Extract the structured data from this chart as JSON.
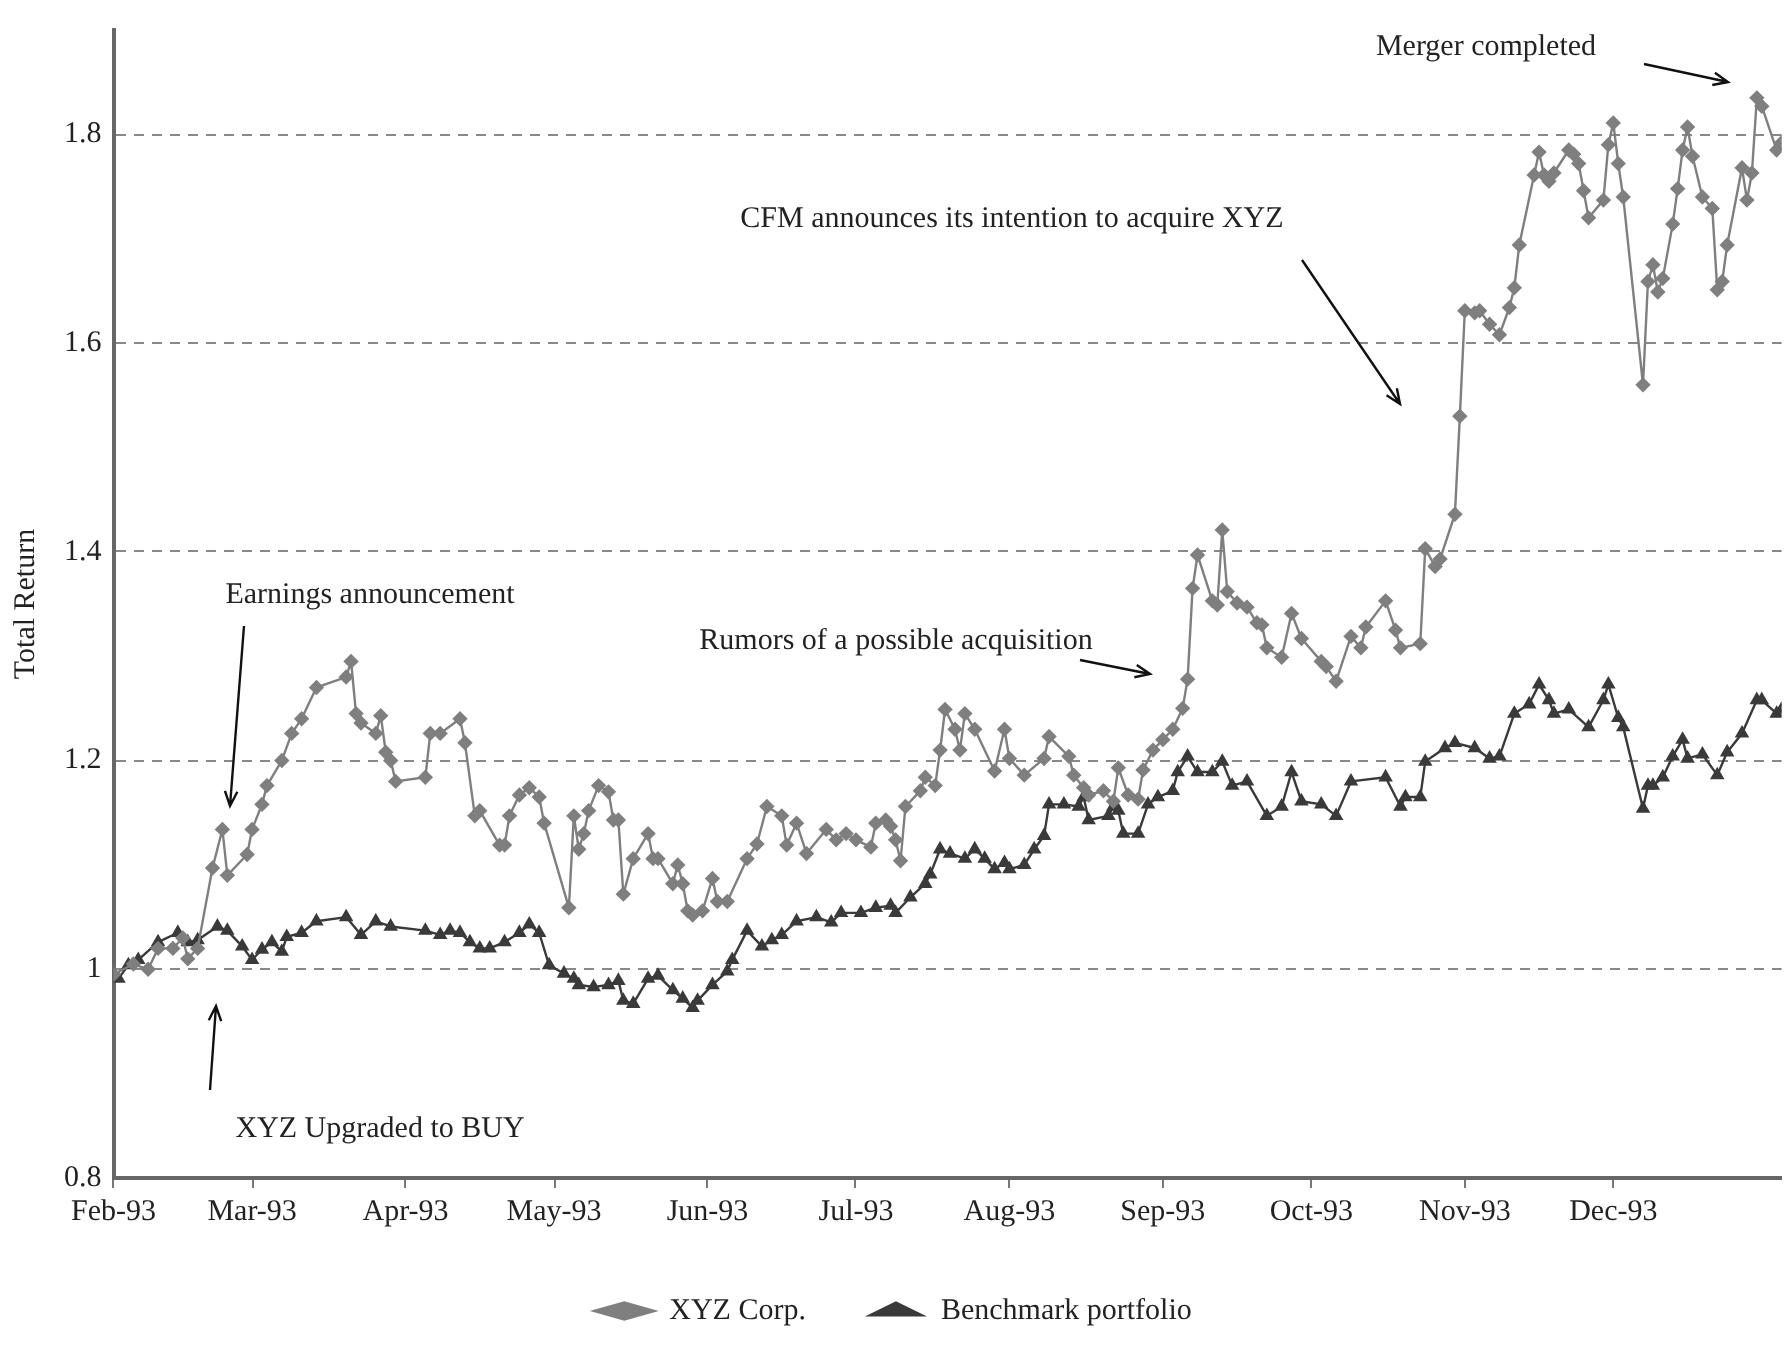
{
  "chart_data": {
    "type": "line",
    "ylabel": "Total Return",
    "ylim": [
      0.8,
      1.9
    ],
    "yticks": [
      0.8,
      1,
      1.2,
      1.4,
      1.6,
      1.8
    ],
    "xlim": [
      "1993-02-01",
      "1994-01-04"
    ],
    "xticks": [
      {
        "value": "1993-02-01",
        "label": "Feb-93"
      },
      {
        "value": "1993-03-01",
        "label": "Mar-93"
      },
      {
        "value": "1993-04-01",
        "label": "Apr-93"
      },
      {
        "value": "1993-05-01",
        "label": "May-93"
      },
      {
        "value": "1993-06-01",
        "label": "Jun-93"
      },
      {
        "value": "1993-07-01",
        "label": "Jul-93"
      },
      {
        "value": "1993-08-01",
        "label": "Aug-93"
      },
      {
        "value": "1993-09-01",
        "label": "Sep-93"
      },
      {
        "value": "1993-10-01",
        "label": "Oct-93"
      },
      {
        "value": "1993-11-01",
        "label": "Nov-93"
      },
      {
        "value": "1993-12-01",
        "label": "Dec-93"
      }
    ],
    "grid": "y",
    "legend": "bottom",
    "line_style": "solid",
    "series": [
      {
        "name": "XYZ Corp.",
        "color": "#7f7f7f",
        "marker": "diamond",
        "x": [
          "1993-02-01",
          "1993-02-05",
          "1993-02-08",
          "1993-02-10",
          "1993-02-13",
          "1993-02-15",
          "1993-02-16",
          "1993-02-18",
          "1993-02-21",
          "1993-02-23",
          "1993-02-24",
          "1993-02-28",
          "1993-03-01",
          "1993-03-03",
          "1993-03-04",
          "1993-03-07",
          "1993-03-09",
          "1993-03-11",
          "1993-03-14",
          "1993-03-20",
          "1993-03-21",
          "1993-03-22",
          "1993-03-23",
          "1993-03-26",
          "1993-03-27",
          "1993-03-28",
          "1993-03-29",
          "1993-03-30",
          "1993-04-05",
          "1993-04-06",
          "1993-04-08",
          "1993-04-12",
          "1993-04-13",
          "1993-04-15",
          "1993-04-16",
          "1993-04-20",
          "1993-04-21",
          "1993-04-22",
          "1993-04-24",
          "1993-04-26",
          "1993-04-28",
          "1993-04-29",
          "1993-05-04",
          "1993-05-05",
          "1993-05-06",
          "1993-05-07",
          "1993-05-08",
          "1993-05-10",
          "1993-05-12",
          "1993-05-13",
          "1993-05-14",
          "1993-05-15",
          "1993-05-17",
          "1993-05-20",
          "1993-05-21",
          "1993-05-22",
          "1993-05-25",
          "1993-05-26",
          "1993-05-27",
          "1993-05-28",
          "1993-05-29",
          "1993-05-31",
          "1993-06-02",
          "1993-06-03",
          "1993-06-05",
          "1993-06-09",
          "1993-06-11",
          "1993-06-13",
          "1993-06-16",
          "1993-06-17",
          "1993-06-19",
          "1993-06-21",
          "1993-06-25",
          "1993-06-27",
          "1993-06-29",
          "1993-07-01",
          "1993-07-04",
          "1993-07-05",
          "1993-07-07",
          "1993-07-08",
          "1993-07-09",
          "1993-07-10",
          "1993-07-11",
          "1993-07-14",
          "1993-07-15",
          "1993-07-17",
          "1993-07-18",
          "1993-07-19",
          "1993-07-21",
          "1993-07-22",
          "1993-07-23",
          "1993-07-25",
          "1993-07-29",
          "1993-07-31",
          "1993-08-01",
          "1993-08-04",
          "1993-08-08",
          "1993-08-09",
          "1993-08-13",
          "1993-08-14",
          "1993-08-16",
          "1993-08-17",
          "1993-08-20",
          "1993-08-22",
          "1993-08-23",
          "1993-08-25",
          "1993-08-27",
          "1993-08-28",
          "1993-08-30",
          "1993-09-01",
          "1993-09-03",
          "1993-09-05",
          "1993-09-06",
          "1993-09-07",
          "1993-09-08",
          "1993-09-11",
          "1993-09-12",
          "1993-09-13",
          "1993-09-14",
          "1993-09-16",
          "1993-09-18",
          "1993-09-20",
          "1993-09-21",
          "1993-09-22",
          "1993-09-25",
          "1993-09-27",
          "1993-09-29",
          "1993-10-03",
          "1993-10-04",
          "1993-10-06",
          "1993-10-09",
          "1993-10-11",
          "1993-10-12",
          "1993-10-16",
          "1993-10-18",
          "1993-10-19",
          "1993-10-23",
          "1993-10-24",
          "1993-10-26",
          "1993-10-27",
          "1993-10-30",
          "1993-10-31",
          "1993-11-01",
          "1993-11-03",
          "1993-11-04",
          "1993-11-06",
          "1993-11-08",
          "1993-11-10",
          "1993-11-11",
          "1993-11-12",
          "1993-11-15",
          "1993-11-16",
          "1993-11-17",
          "1993-11-18",
          "1993-11-19",
          "1993-11-22",
          "1993-11-23",
          "1993-11-24",
          "1993-11-25",
          "1993-11-26",
          "1993-11-29",
          "1993-11-30",
          "1993-12-01",
          "1993-12-02",
          "1993-12-03",
          "1993-12-07",
          "1993-12-08",
          "1993-12-09",
          "1993-12-10",
          "1993-12-11",
          "1993-12-13",
          "1993-12-14",
          "1993-12-15",
          "1993-12-16",
          "1993-12-17",
          "1993-12-19",
          "1993-12-21",
          "1993-12-22",
          "1993-12-23",
          "1993-12-24",
          "1993-12-27",
          "1993-12-28",
          "1993-12-29",
          "1993-12-30",
          "1993-12-31",
          "1994-01-03",
          "1994-01-04"
        ],
        "values": [
          0.995,
          1.005,
          1.0,
          1.02,
          1.02,
          1.03,
          1.01,
          1.02,
          1.097,
          1.134,
          1.09,
          1.11,
          1.134,
          1.158,
          1.176,
          1.2,
          1.226,
          1.24,
          1.27,
          1.28,
          1.295,
          1.245,
          1.236,
          1.226,
          1.243,
          1.208,
          1.2,
          1.18,
          1.184,
          1.226,
          1.226,
          1.24,
          1.217,
          1.147,
          1.152,
          1.119,
          1.119,
          1.147,
          1.167,
          1.174,
          1.165,
          1.14,
          1.059,
          1.147,
          1.115,
          1.13,
          1.152,
          1.176,
          1.17,
          1.143,
          1.143,
          1.072,
          1.106,
          1.13,
          1.106,
          1.106,
          1.082,
          1.1,
          1.082,
          1.056,
          1.052,
          1.056,
          1.087,
          1.065,
          1.065,
          1.106,
          1.12,
          1.156,
          1.147,
          1.119,
          1.14,
          1.111,
          1.134,
          1.124,
          1.13,
          1.124,
          1.117,
          1.14,
          1.143,
          1.137,
          1.124,
          1.104,
          1.156,
          1.171,
          1.184,
          1.176,
          1.21,
          1.249,
          1.23,
          1.21,
          1.245,
          1.23,
          1.19,
          1.23,
          1.202,
          1.186,
          1.202,
          1.223,
          1.204,
          1.186,
          1.174,
          1.167,
          1.171,
          1.161,
          1.193,
          1.167,
          1.163,
          1.191,
          1.21,
          1.22,
          1.23,
          1.25,
          1.278,
          1.365,
          1.397,
          1.353,
          1.349,
          1.421,
          1.362,
          1.351,
          1.347,
          1.332,
          1.33,
          1.308,
          1.299,
          1.341,
          1.317,
          1.295,
          1.29,
          1.276,
          1.319,
          1.308,
          1.328,
          1.353,
          1.325,
          1.308,
          1.312,
          1.403,
          1.386,
          1.393,
          1.436,
          1.53,
          1.631,
          1.629,
          1.631,
          1.618,
          1.608,
          1.634,
          1.653,
          1.694,
          1.761,
          1.783,
          1.761,
          1.755,
          1.763,
          1.785,
          1.781,
          1.772,
          1.746,
          1.72,
          1.737,
          1.79,
          1.811,
          1.772,
          1.74,
          1.56,
          1.659,
          1.675,
          1.649,
          1.662,
          1.714,
          1.748,
          1.785,
          1.807,
          1.779,
          1.74,
          1.729,
          1.651,
          1.659,
          1.694,
          1.768,
          1.737,
          1.763,
          1.835,
          1.827,
          1.785,
          1.792
        ]
      },
      {
        "name": "Benchmark portfolio",
        "color": "#3a3a3a",
        "marker": "triangle",
        "x": [
          "1993-02-02",
          "1993-02-04",
          "1993-02-06",
          "1993-02-10",
          "1993-02-14",
          "1993-02-16",
          "1993-02-18",
          "1993-02-22",
          "1993-02-24",
          "1993-02-27",
          "1993-03-01",
          "1993-03-03",
          "1993-03-05",
          "1993-03-07",
          "1993-03-08",
          "1993-03-11",
          "1993-03-14",
          "1993-03-20",
          "1993-03-23",
          "1993-03-26",
          "1993-03-29",
          "1993-04-05",
          "1993-04-08",
          "1993-04-10",
          "1993-04-12",
          "1993-04-14",
          "1993-04-16",
          "1993-04-18",
          "1993-04-21",
          "1993-04-24",
          "1993-04-26",
          "1993-04-28",
          "1993-04-30",
          "1993-05-03",
          "1993-05-05",
          "1993-05-06",
          "1993-05-09",
          "1993-05-12",
          "1993-05-14",
          "1993-05-15",
          "1993-05-17",
          "1993-05-20",
          "1993-05-22",
          "1993-05-25",
          "1993-05-27",
          "1993-05-29",
          "1993-05-30",
          "1993-06-02",
          "1993-06-05",
          "1993-06-06",
          "1993-06-09",
          "1993-06-12",
          "1993-06-14",
          "1993-06-16",
          "1993-06-19",
          "1993-06-23",
          "1993-06-26",
          "1993-06-28",
          "1993-07-02",
          "1993-07-05",
          "1993-07-08",
          "1993-07-09",
          "1993-07-12",
          "1993-07-15",
          "1993-07-16",
          "1993-07-18",
          "1993-07-20",
          "1993-07-23",
          "1993-07-25",
          "1993-07-27",
          "1993-07-29",
          "1993-07-31",
          "1993-08-01",
          "1993-08-04",
          "1993-08-06",
          "1993-08-08",
          "1993-08-09",
          "1993-08-12",
          "1993-08-15",
          "1993-08-16",
          "1993-08-17",
          "1993-08-21",
          "1993-08-22",
          "1993-08-23",
          "1993-08-24",
          "1993-08-27",
          "1993-08-29",
          "1993-08-31",
          "1993-09-03",
          "1993-09-04",
          "1993-09-06",
          "1993-09-08",
          "1993-09-11",
          "1993-09-13",
          "1993-09-15",
          "1993-09-18",
          "1993-09-22",
          "1993-09-25",
          "1993-09-27",
          "1993-09-29",
          "1993-10-03",
          "1993-10-06",
          "1993-10-09",
          "1993-10-16",
          "1993-10-19",
          "1993-10-20",
          "1993-10-23",
          "1993-10-24",
          "1993-10-28",
          "1993-10-30",
          "1993-11-03",
          "1993-11-06",
          "1993-11-08",
          "1993-11-11",
          "1993-11-14",
          "1993-11-16",
          "1993-11-18",
          "1993-11-19",
          "1993-11-22",
          "1993-11-26",
          "1993-11-29",
          "1993-11-30",
          "1993-12-02",
          "1993-12-03",
          "1993-12-07",
          "1993-12-08",
          "1993-12-09",
          "1993-12-11",
          "1993-12-13",
          "1993-12-15",
          "1993-12-16",
          "1993-12-19",
          "1993-12-22",
          "1993-12-24",
          "1993-12-27",
          "1993-12-30",
          "1993-12-31",
          "1994-01-03",
          "1994-01-04"
        ],
        "values": [
          0.991,
          1.004,
          1.009,
          1.026,
          1.035,
          1.026,
          1.028,
          1.041,
          1.037,
          1.022,
          1.009,
          1.019,
          1.026,
          1.017,
          1.031,
          1.035,
          1.046,
          1.05,
          1.033,
          1.046,
          1.041,
          1.037,
          1.033,
          1.037,
          1.035,
          1.026,
          1.02,
          1.02,
          1.026,
          1.035,
          1.043,
          1.035,
          1.004,
          0.996,
          0.991,
          0.985,
          0.983,
          0.985,
          0.989,
          0.97,
          0.967,
          0.991,
          0.994,
          0.98,
          0.972,
          0.963,
          0.97,
          0.985,
          0.998,
          1.009,
          1.037,
          1.022,
          1.028,
          1.033,
          1.046,
          1.05,
          1.045,
          1.054,
          1.054,
          1.059,
          1.061,
          1.054,
          1.069,
          1.082,
          1.091,
          1.115,
          1.111,
          1.106,
          1.115,
          1.106,
          1.096,
          1.102,
          1.096,
          1.1,
          1.115,
          1.128,
          1.158,
          1.158,
          1.156,
          1.165,
          1.143,
          1.147,
          1.156,
          1.152,
          1.13,
          1.13,
          1.158,
          1.165,
          1.171,
          1.189,
          1.204,
          1.189,
          1.189,
          1.199,
          1.176,
          1.18,
          1.147,
          1.156,
          1.189,
          1.161,
          1.158,
          1.147,
          1.18,
          1.184,
          1.156,
          1.165,
          1.165,
          1.199,
          1.212,
          1.217,
          1.212,
          1.202,
          1.204,
          1.245,
          1.254,
          1.273,
          1.258,
          1.245,
          1.249,
          1.232,
          1.258,
          1.273,
          1.241,
          1.232,
          1.154,
          1.176,
          1.176,
          1.184,
          1.204,
          1.22,
          1.202,
          1.206,
          1.186,
          1.208,
          1.226,
          1.258,
          1.258,
          1.245,
          1.249
        ]
      }
    ],
    "annotations": [
      "Earnings announcement",
      "XYZ Upgraded to BUY",
      "Rumors of a possible acquisition",
      "CFM announces its intention to acquire XYZ",
      "Merger completed"
    ]
  }
}
